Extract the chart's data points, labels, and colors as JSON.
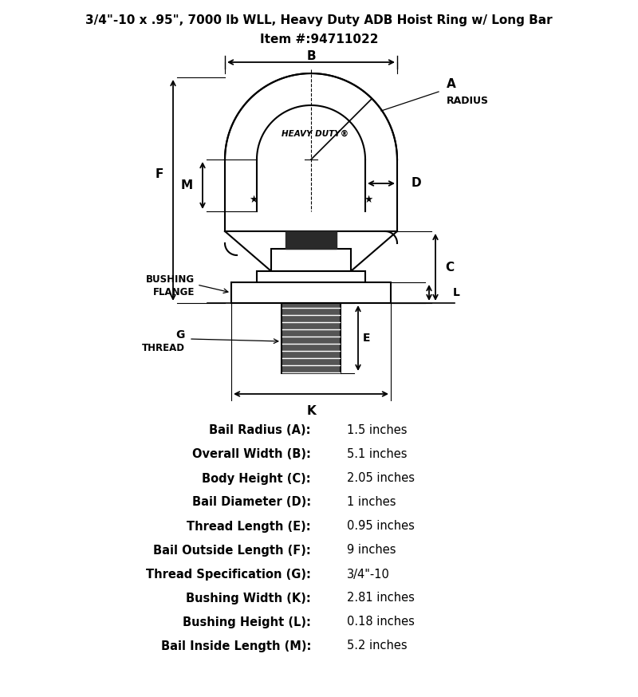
{
  "title_line1": "3/4\"-10 x .95\", 7000 lb WLL, Heavy Duty ADB Hoist Ring w/ Long Bar",
  "title_line2": "Item #:94711022",
  "specs": [
    [
      "Bail Radius (A):",
      "1.5 inches"
    ],
    [
      "Overall Width (B):",
      "5.1 inches"
    ],
    [
      "Body Height (C):",
      "2.05 inches"
    ],
    [
      "Bail Diameter (D):",
      "1 inches"
    ],
    [
      "Thread Length (E):",
      "0.95 inches"
    ],
    [
      "Bail Outside Length (F):",
      "9 inches"
    ],
    [
      "Thread Specification (G):",
      "3/4\"-10"
    ],
    [
      "Bushing Width (K):",
      "2.81 inches"
    ],
    [
      "Bushing Height (L):",
      "0.18 inches"
    ],
    [
      "Bail Inside Length (M):",
      "5.2 inches"
    ]
  ],
  "bg_color": "#ffffff",
  "line_color": "#000000"
}
